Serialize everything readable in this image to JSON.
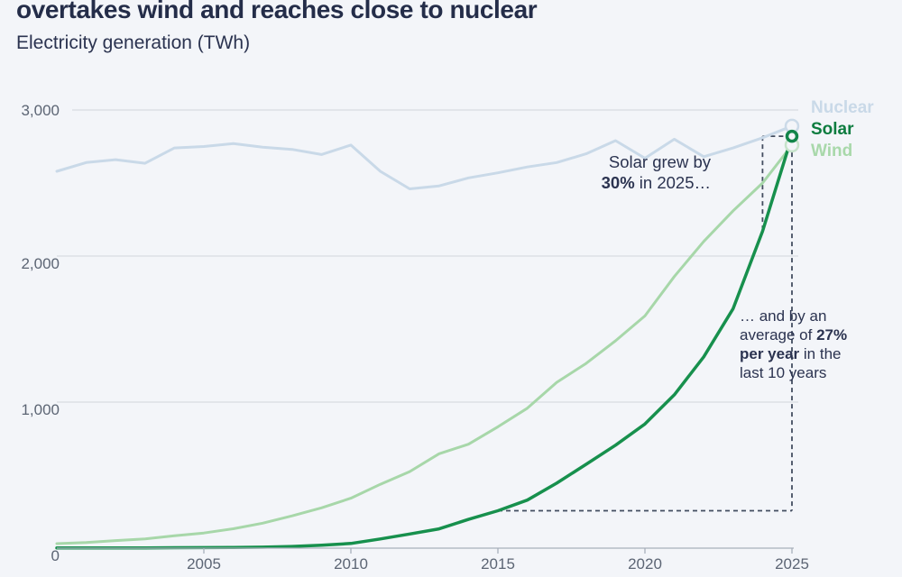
{
  "colors": {
    "background": "#f3f5f9",
    "title_text": "#242d49",
    "body_text": "#2b3350",
    "axis_text": "#5c6574",
    "gridline": "#d8dce2",
    "axis_line": "#a9b0bb",
    "tick": "#a9b0bb",
    "dashed": "#434d60",
    "nuclear": "#c9d9e8",
    "solar": "#17904d",
    "wind": "#a7d7a9"
  },
  "header": {
    "title": "overtakes wind and reaches close to nuclear",
    "subtitle": "Electricity generation (TWh)"
  },
  "legend": [
    {
      "label": "Nuclear",
      "color": "#c9d9e8"
    },
    {
      "label": "Solar",
      "color": "#0d7c3f"
    },
    {
      "label": "Wind",
      "color": "#a8d8aa"
    }
  ],
  "annotations": {
    "growth_2025": {
      "lines": [
        [
          {
            "t": "Solar grew by"
          }
        ],
        [
          {
            "t": "30%",
            "b": true
          },
          {
            "t": " in 2025…"
          }
        ]
      ]
    },
    "growth_decade": {
      "lines": [
        [
          {
            "t": "… and by an"
          }
        ],
        [
          {
            "t": "average of "
          },
          {
            "t": "27%",
            "b": true
          }
        ],
        [
          {
            "t": "per year",
            "b": true
          },
          {
            "t": " in the"
          }
        ],
        [
          {
            "t": "last 10 years"
          }
        ]
      ]
    }
  },
  "chart_data": {
    "type": "line",
    "title": "overtakes wind and reaches close to nuclear",
    "ylabel": "Electricity generation (TWh)",
    "xlabel": "",
    "x": [
      2000,
      2001,
      2002,
      2003,
      2004,
      2005,
      2006,
      2007,
      2008,
      2009,
      2010,
      2011,
      2012,
      2013,
      2014,
      2015,
      2016,
      2017,
      2018,
      2019,
      2020,
      2021,
      2022,
      2023,
      2024,
      2025
    ],
    "ylim": [
      0,
      3000
    ],
    "yticks": [
      {
        "v": 0,
        "label": "0"
      },
      {
        "v": 1000,
        "label": "1,000"
      },
      {
        "v": 2000,
        "label": "2,000"
      },
      {
        "v": 3000,
        "label": "3,000"
      }
    ],
    "xticks": [
      2005,
      2010,
      2015,
      2020,
      2025
    ],
    "grid": "horizontal-only",
    "legend_position": "right-of-line-ends",
    "series": [
      {
        "name": "Nuclear",
        "color": "#c9d9e8",
        "line_width": 3,
        "marker": {
          "r": 7,
          "w": 2.5,
          "color": "#cbdae8"
        },
        "values": [
          2580,
          2640,
          2660,
          2635,
          2740,
          2750,
          2770,
          2745,
          2730,
          2695,
          2760,
          2580,
          2460,
          2480,
          2535,
          2570,
          2610,
          2640,
          2700,
          2790,
          2670,
          2800,
          2680,
          2740,
          2810,
          2890
        ]
      },
      {
        "name": "Wind",
        "color": "#a7d7a9",
        "line_width": 3,
        "marker": {
          "r": 7,
          "w": 2.5,
          "color": "#c6e3ca"
        },
        "values": [
          31,
          38,
          52,
          63,
          85,
          104,
          133,
          171,
          221,
          276,
          342,
          437,
          524,
          646,
          712,
          831,
          958,
          1135,
          1265,
          1420,
          1590,
          1860,
          2100,
          2310,
          2500,
          2760
        ]
      },
      {
        "name": "Solar",
        "color": "#17904d",
        "line_width": 3.5,
        "marker": {
          "r": 5.5,
          "w": 3.5,
          "color": "#12854a"
        },
        "values": [
          1,
          1,
          2,
          2,
          3,
          4,
          5,
          7,
          12,
          20,
          32,
          63,
          97,
          132,
          197,
          256,
          329,
          445,
          574,
          705,
          850,
          1050,
          1310,
          1640,
          2170,
          2820
        ]
      }
    ],
    "dashed_annotation": {
      "growth_year_from": 2024,
      "growth_year_to": 2025,
      "decade_year_from": 2015,
      "solar_growth_2025_pct": 30,
      "solar_avg_growth_pct_per_year": 27,
      "period_years": 10
    }
  }
}
